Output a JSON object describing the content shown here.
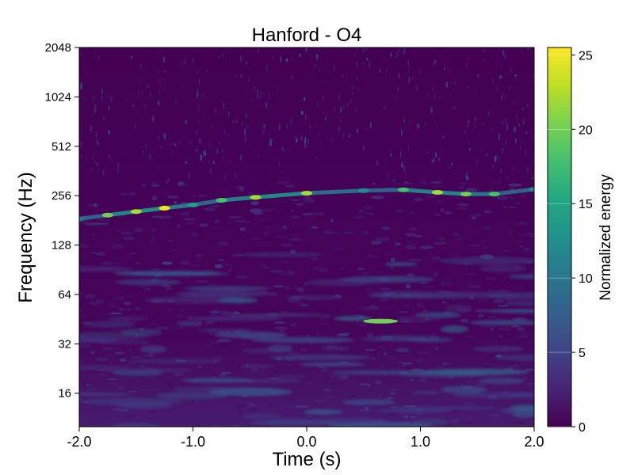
{
  "chart_data": {
    "type": "heatmap",
    "title": "Hanford - O4",
    "xlabel": "Time (s)",
    "ylabel": "Frequency (Hz)",
    "xlim": [
      -2.0,
      2.0
    ],
    "ylim": [
      10,
      2048
    ],
    "yscale": "log2",
    "xticks": [
      -2.0,
      -1.0,
      0.0,
      1.0,
      2.0
    ],
    "xtick_labels": [
      "-2.0",
      "-1.0",
      "0.0",
      "1.0",
      "2.0"
    ],
    "yticks": [
      16,
      32,
      64,
      128,
      256,
      512,
      1024,
      2048
    ],
    "ytick_labels": [
      "16",
      "32",
      "64",
      "128",
      "256",
      "512",
      "1024",
      "2048"
    ],
    "colorbar": {
      "label": "Normalized energy",
      "range": [
        0,
        25.5
      ],
      "ticks": [
        0,
        5,
        10,
        15,
        20,
        25
      ],
      "tick_labels": [
        "0",
        "5",
        "10",
        "15",
        "20",
        "25"
      ],
      "colormap": "viridis"
    },
    "chirp_track": [
      {
        "t": -2.0,
        "f": 185,
        "energy": 10
      },
      {
        "t": -1.75,
        "f": 195,
        "energy": 20
      },
      {
        "t": -1.5,
        "f": 205,
        "energy": 22
      },
      {
        "t": -1.25,
        "f": 215,
        "energy": 25
      },
      {
        "t": -1.0,
        "f": 225,
        "energy": 14
      },
      {
        "t": -0.75,
        "f": 240,
        "energy": 18
      },
      {
        "t": -0.45,
        "f": 250,
        "energy": 22
      },
      {
        "t": 0.0,
        "f": 265,
        "energy": 22
      },
      {
        "t": 0.5,
        "f": 275,
        "energy": 12
      },
      {
        "t": 0.85,
        "f": 278,
        "energy": 18
      },
      {
        "t": 1.15,
        "f": 268,
        "energy": 22
      },
      {
        "t": 1.4,
        "f": 262,
        "energy": 20
      },
      {
        "t": 1.65,
        "f": 262,
        "energy": 18
      },
      {
        "t": 2.0,
        "f": 280,
        "energy": 12
      }
    ],
    "features": [
      {
        "t": 0.65,
        "f": 44,
        "energy": 20
      }
    ]
  }
}
